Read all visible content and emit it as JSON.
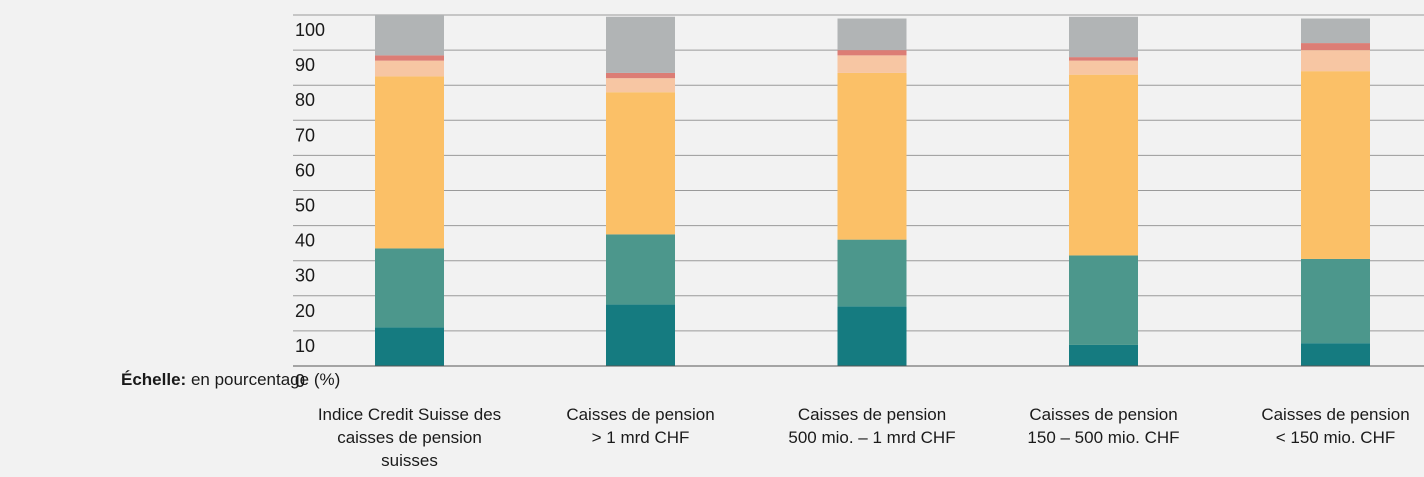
{
  "scale": {
    "prefix": "Échelle:",
    "text": "en pourcentage (%)"
  },
  "chart_data": {
    "type": "bar",
    "stacked": true,
    "categories": [
      [
        "Indice Credit Suisse des",
        "caisses de pension",
        "suisses"
      ],
      [
        "Caisses de pension",
        "> 1 mrd CHF"
      ],
      [
        "Caisses de pension",
        "500 mio. – 1 mrd CHF"
      ],
      [
        "Caisses de pension",
        "150 – 500 mio. CHF"
      ],
      [
        "Caisses de pension",
        "< 150 mio. CHF"
      ]
    ],
    "series": [
      {
        "color": "#157b80",
        "values": [
          11.0,
          17.5,
          17.0,
          6.0,
          6.5
        ]
      },
      {
        "color": "#4c978c",
        "values": [
          22.5,
          20.0,
          19.0,
          25.5,
          24.0
        ]
      },
      {
        "color": "#fbc067",
        "values": [
          49.0,
          40.5,
          47.5,
          51.5,
          53.5
        ]
      },
      {
        "color": "#f7c6a3",
        "values": [
          4.5,
          4.0,
          5.0,
          4.0,
          6.0
        ]
      },
      {
        "color": "#dc7d75",
        "values": [
          1.5,
          1.5,
          1.5,
          1.0,
          2.0
        ]
      },
      {
        "color": "#b1b4b5",
        "values": [
          11.5,
          16.0,
          9.0,
          11.5,
          7.0
        ]
      }
    ],
    "ylim": [
      0,
      100
    ],
    "yticks": [
      0,
      10,
      20,
      30,
      40,
      50,
      60,
      70,
      80,
      90,
      100
    ],
    "grid": true,
    "xlabel": "",
    "ylabel": ""
  }
}
